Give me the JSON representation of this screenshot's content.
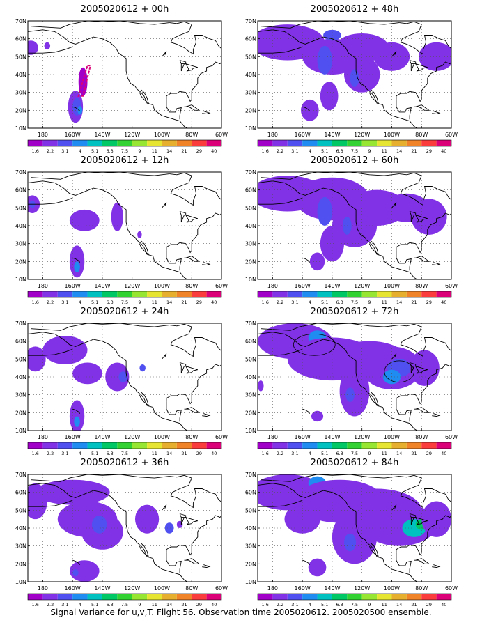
{
  "caption": "Signal Variance for u,v,T. Flight 56. Observation time 2005020612. 2005020500 ensemble.",
  "lat_labels": [
    "70N",
    "60N",
    "50N",
    "40N",
    "30N",
    "20N",
    "10N"
  ],
  "lon_labels": [
    "180",
    "160W",
    "140W",
    "120W",
    "100W",
    "80W",
    "60W"
  ],
  "colorbar": {
    "labels": [
      "1.6",
      "2.2",
      "3.1",
      "4",
      "5.1",
      "6.3",
      "7.5",
      "9",
      "11",
      "14",
      "21",
      "29",
      "40"
    ],
    "colors": [
      "#a000c8",
      "#8232e6",
      "#5050f0",
      "#1e8cf0",
      "#00c0c0",
      "#00c864",
      "#32d232",
      "#96e632",
      "#e6e632",
      "#e6af2d",
      "#f08228",
      "#fa3c3c",
      "#dc0078"
    ]
  },
  "panels": [
    {
      "title": "2005020612 + 00h",
      "lead": 0
    },
    {
      "title": "2005020612 + 48h",
      "lead": 48
    },
    {
      "title": "2005020612 + 12h",
      "lead": 12
    },
    {
      "title": "2005020612 + 60h",
      "lead": 60
    },
    {
      "title": "2005020612 + 24h",
      "lead": 24
    },
    {
      "title": "2005020612 + 72h",
      "lead": 72
    },
    {
      "title": "2005020612 + 36h",
      "lead": 36
    },
    {
      "title": "2005020612 + 84h",
      "lead": 84
    }
  ]
}
